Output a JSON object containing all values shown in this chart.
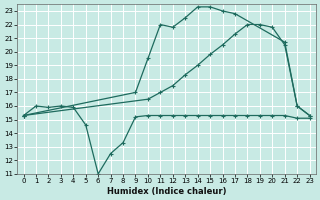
{
  "xlabel": "Humidex (Indice chaleur)",
  "xlim": [
    -0.5,
    23.5
  ],
  "ylim": [
    11,
    23.5
  ],
  "xticks": [
    0,
    1,
    2,
    3,
    4,
    5,
    6,
    7,
    8,
    9,
    10,
    11,
    12,
    13,
    14,
    15,
    16,
    17,
    18,
    19,
    20,
    21,
    22,
    23
  ],
  "yticks": [
    11,
    12,
    13,
    14,
    15,
    16,
    17,
    18,
    19,
    20,
    21,
    22,
    23
  ],
  "bg_color": "#c8eae4",
  "line_color": "#1e6b5e",
  "grid_color": "#ffffff",
  "line1_x": [
    0,
    1,
    2,
    3,
    4,
    5,
    6,
    7,
    8,
    9,
    10,
    11,
    12,
    13,
    14,
    15,
    16,
    17,
    18,
    19,
    20,
    21,
    22,
    23
  ],
  "line1_y": [
    15.3,
    16.0,
    15.9,
    16.0,
    15.9,
    14.6,
    11.0,
    12.5,
    13.3,
    15.2,
    15.3,
    15.3,
    15.3,
    15.3,
    15.3,
    15.3,
    15.3,
    15.3,
    15.3,
    15.3,
    15.3,
    15.3,
    15.1,
    15.1
  ],
  "line2_x": [
    0,
    9,
    10,
    11,
    12,
    13,
    14,
    15,
    16,
    17,
    21,
    22,
    23
  ],
  "line2_y": [
    15.3,
    17.0,
    19.5,
    22.0,
    21.8,
    22.5,
    23.3,
    23.3,
    23.0,
    22.8,
    20.7,
    16.0,
    15.3
  ],
  "line3_x": [
    0,
    10,
    11,
    12,
    13,
    14,
    15,
    16,
    17,
    18,
    19,
    20,
    21,
    22,
    23
  ],
  "line3_y": [
    15.3,
    16.5,
    17.0,
    17.5,
    18.3,
    19.0,
    19.8,
    20.5,
    21.3,
    22.0,
    22.0,
    21.8,
    20.5,
    16.0,
    15.3
  ]
}
